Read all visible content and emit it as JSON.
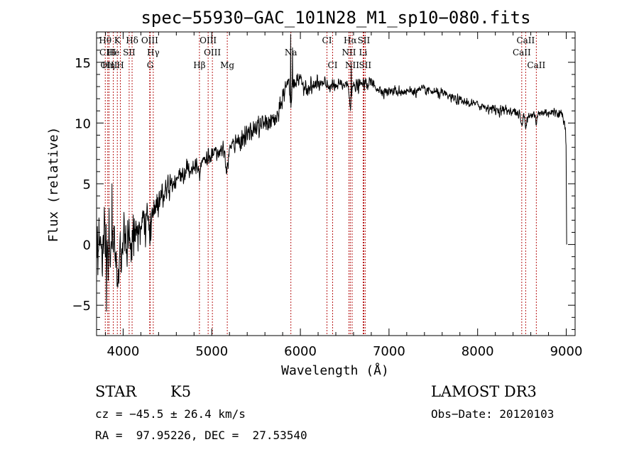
{
  "chart_data": {
    "type": "line",
    "title": "spec−55930−GAC_101N28_M1_sp10−080.fits",
    "xlabel": "Wavelength (Å)",
    "ylabel": "Flux (relative)",
    "xlim": [
      3700,
      9100
    ],
    "ylim": [
      -7.5,
      17.5
    ],
    "x_ticks": [
      4000,
      5000,
      6000,
      7000,
      8000,
      9000
    ],
    "x_tick_labels": [
      "4000",
      "5000",
      "6000",
      "7000",
      "8000",
      "9000"
    ],
    "y_ticks": [
      -5,
      0,
      5,
      10,
      15
    ],
    "y_tick_labels": [
      "−5",
      "0",
      "5",
      "10",
      "15"
    ],
    "series": [
      {
        "name": "spectrum",
        "continuum": [
          [
            3700,
            0.5
          ],
          [
            3800,
            -1.0
          ],
          [
            3900,
            -0.2
          ],
          [
            4000,
            0.0
          ],
          [
            4100,
            0.8
          ],
          [
            4200,
            1.3
          ],
          [
            4300,
            2.3
          ],
          [
            4400,
            3.6
          ],
          [
            4500,
            4.9
          ],
          [
            4600,
            5.4
          ],
          [
            4700,
            6.0
          ],
          [
            4800,
            6.4
          ],
          [
            4900,
            7.0
          ],
          [
            5000,
            7.3
          ],
          [
            5100,
            7.6
          ],
          [
            5200,
            7.9
          ],
          [
            5300,
            8.5
          ],
          [
            5400,
            9.0
          ],
          [
            5500,
            9.6
          ],
          [
            5600,
            10.0
          ],
          [
            5700,
            10.2
          ],
          [
            5760,
            10.6
          ],
          [
            5800,
            12.2
          ],
          [
            5860,
            13.4
          ],
          [
            5900,
            13.6
          ],
          [
            6000,
            13.3
          ],
          [
            6100,
            12.9
          ],
          [
            6200,
            13.2
          ],
          [
            6300,
            13.1
          ],
          [
            6400,
            13.0
          ],
          [
            6500,
            13.2
          ],
          [
            6600,
            12.9
          ],
          [
            6700,
            13.2
          ],
          [
            6800,
            13.3
          ],
          [
            6900,
            12.7
          ],
          [
            7000,
            12.6
          ],
          [
            7200,
            12.6
          ],
          [
            7400,
            12.7
          ],
          [
            7600,
            12.4
          ],
          [
            7800,
            11.8
          ],
          [
            8000,
            11.5
          ],
          [
            8200,
            11.1
          ],
          [
            8400,
            11.0
          ],
          [
            8500,
            10.6
          ],
          [
            8600,
            10.7
          ],
          [
            8800,
            10.9
          ],
          [
            8950,
            10.8
          ],
          [
            8990,
            10.0
          ],
          [
            9000,
            7.6
          ],
          [
            9005,
            0.0
          ]
        ],
        "noise_sigma": [
          [
            3700,
            2.0
          ],
          [
            4000,
            1.5
          ],
          [
            4300,
            0.9
          ],
          [
            4600,
            0.6
          ],
          [
            5000,
            0.45
          ],
          [
            5800,
            0.6
          ],
          [
            6200,
            0.4
          ],
          [
            7000,
            0.3
          ],
          [
            8000,
            0.25
          ],
          [
            9000,
            0.3
          ]
        ],
        "features": [
          {
            "x": 3934,
            "depth": 2.5,
            "width": 10
          },
          {
            "x": 3968,
            "depth": 2.0,
            "width": 10
          },
          {
            "x": 4101,
            "depth": 1.0,
            "width": 8
          },
          {
            "x": 4305,
            "depth": 1.5,
            "width": 15
          },
          {
            "x": 4861,
            "depth": 0.7,
            "width": 8
          },
          {
            "x": 5170,
            "depth": 1.5,
            "width": 15
          },
          {
            "x": 5893,
            "depth": 2.0,
            "width": 10
          },
          {
            "x": 6563,
            "depth": 1.5,
            "width": 8
          },
          {
            "x": 8498,
            "depth": 1.0,
            "width": 8
          },
          {
            "x": 8542,
            "depth": 1.0,
            "width": 8
          },
          {
            "x": 8662,
            "depth": 1.0,
            "width": 8
          }
        ],
        "spikes": [
          {
            "x": 3810,
            "value": -5.5
          },
          {
            "x": 3840,
            "value": 3.0
          },
          {
            "x": 3875,
            "value": 5.0
          },
          {
            "x": 5890,
            "value": 17.3
          },
          {
            "x": 5910,
            "value": 16.2
          },
          {
            "x": 6560,
            "value": 11.4
          },
          {
            "x": 6575,
            "value": 14.8
          }
        ]
      }
    ],
    "spectral_lines": [
      {
        "label": "Hθ",
        "x": 3798,
        "row": 0
      },
      {
        "label": "CIII",
        "x": 3826,
        "row": 1
      },
      {
        "label": "OIII",
        "x": 3840,
        "row": 2
      },
      {
        "label": "Hη",
        "x": 3835,
        "row": 2
      },
      {
        "label": "He",
        "x": 3889,
        "row": 1
      },
      {
        "label": "K",
        "x": 3934,
        "row": 0
      },
      {
        "label": "H",
        "x": 3968,
        "row": 2
      },
      {
        "label": "Hδ",
        "x": 4101,
        "row": 0
      },
      {
        "label": "SII",
        "x": 4068,
        "row": 1
      },
      {
        "label": "OIII",
        "x": 4300,
        "row": 0
      },
      {
        "label": "Hγ",
        "x": 4340,
        "row": 1
      },
      {
        "label": "G",
        "x": 4305,
        "row": 2
      },
      {
        "label": "OIII",
        "x": 4959,
        "row": 0
      },
      {
        "label": "OIII",
        "x": 5007,
        "row": 1
      },
      {
        "label": "Hβ",
        "x": 4861,
        "row": 2
      },
      {
        "label": "Mg",
        "x": 5175,
        "row": 2
      },
      {
        "label": "Na",
        "x": 5893,
        "row": 1
      },
      {
        "label": "CI",
        "x": 6300,
        "row": 0
      },
      {
        "label": "CI",
        "x": 6364,
        "row": 2
      },
      {
        "label": "Hα",
        "x": 6563,
        "row": 0
      },
      {
        "label": "NII",
        "x": 6548,
        "row": 1
      },
      {
        "label": "NII",
        "x": 6584,
        "row": 2
      },
      {
        "label": "SII",
        "x": 6716,
        "row": 0
      },
      {
        "label": "Li",
        "x": 6708,
        "row": 1
      },
      {
        "label": "SII",
        "x": 6731,
        "row": 2
      },
      {
        "label": "CaII",
        "x": 8542,
        "row": 0
      },
      {
        "label": "CaII",
        "x": 8498,
        "row": 1
      },
      {
        "label": "CaII",
        "x": 8662,
        "row": 2
      }
    ],
    "annotations": {
      "class": "STAR",
      "subclass": "K5",
      "survey": "LAMOST DR3",
      "cz": "cz = −45.5 ± 26.4 km/s",
      "obs_date": "Obs−Date: 20120103",
      "coords": "RA =  97.95226, DEC =  27.53540"
    }
  }
}
